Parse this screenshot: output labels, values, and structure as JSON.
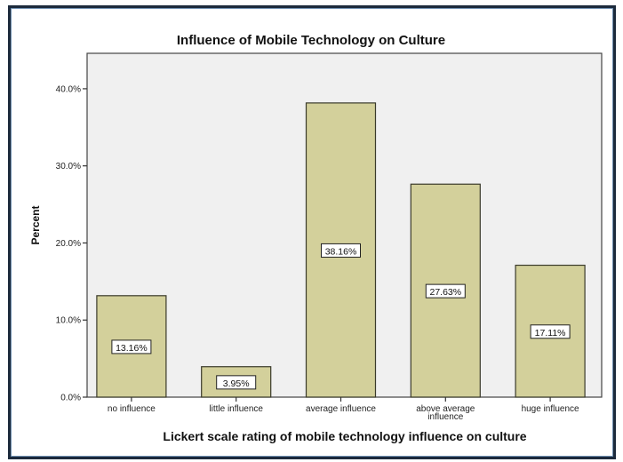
{
  "chart_data": {
    "type": "bar",
    "title": "Influence of Mobile Technology on Culture",
    "xlabel": "Lickert scale rating of mobile technology influence on culture",
    "ylabel": "Percent",
    "categories": [
      "no influence",
      "little influence",
      "average influence",
      "above average influence",
      "huge influence"
    ],
    "category_lines": [
      [
        "no influence"
      ],
      [
        "little influence"
      ],
      [
        "average influence"
      ],
      [
        "above average",
        "influence"
      ],
      [
        "huge influence"
      ]
    ],
    "values": [
      13.16,
      3.95,
      38.16,
      27.63,
      17.11
    ],
    "data_labels": [
      "13.16%",
      "3.95%",
      "38.16%",
      "27.63%",
      "17.11%"
    ],
    "yticks": [
      0,
      10,
      20,
      30,
      40
    ],
    "ytick_labels": [
      "0.0%",
      "10.0%",
      "20.0%",
      "30.0%",
      "40.0%"
    ],
    "ylim": [
      0,
      44.6
    ],
    "grid": false,
    "colors": {
      "bar": "#d3d09b",
      "bar_edge": "#3a3a2a",
      "plot_bg": "#f0f0f0",
      "frame": "#1c2a3c"
    }
  }
}
